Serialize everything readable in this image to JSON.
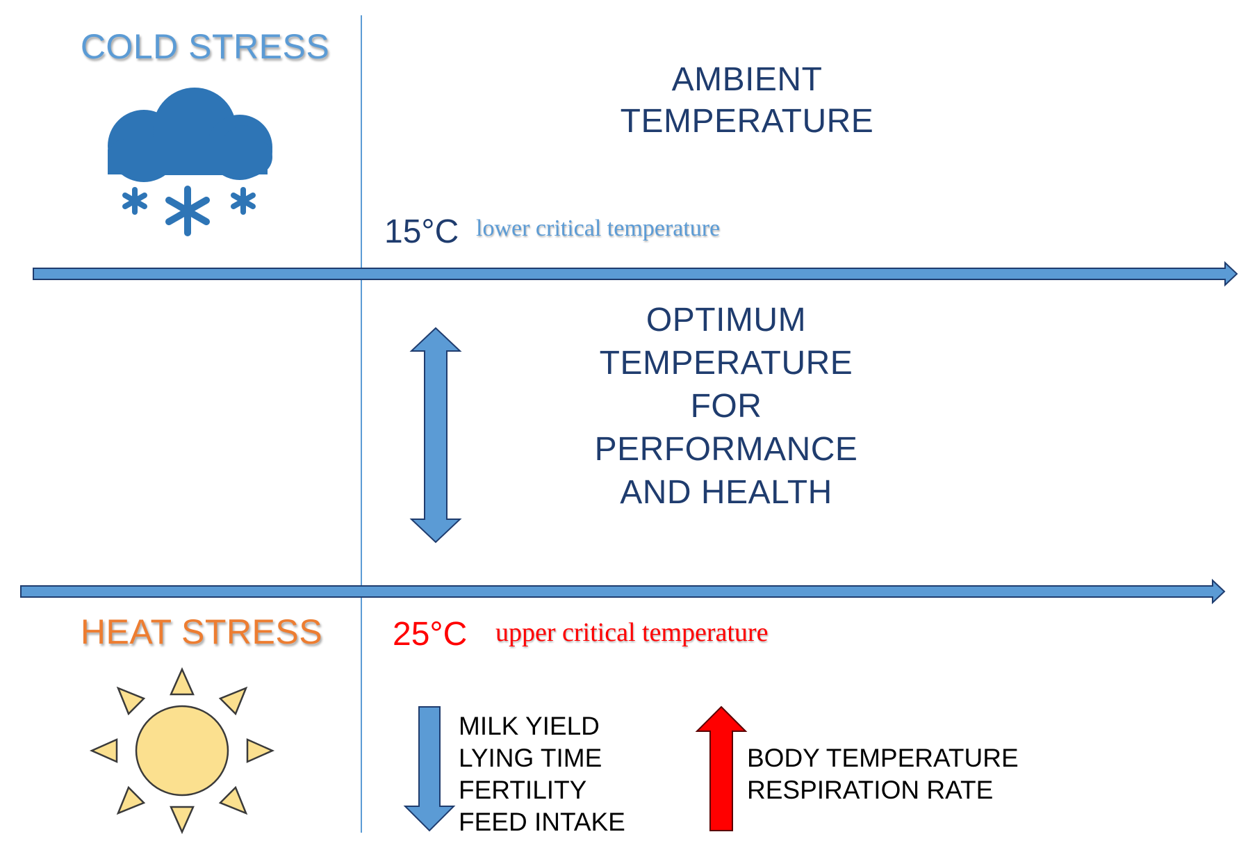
{
  "colors": {
    "cold": "#5b9bd5",
    "heat": "#ed7d31",
    "navy": "#1f3c6e",
    "red": "#ff0000",
    "sun_fill": "#fbe08f"
  },
  "cold": {
    "title": "COLD STRESS",
    "icon": "snow-cloud-icon"
  },
  "heat": {
    "title": "HEAT STRESS",
    "icon": "sun-icon"
  },
  "axis": {
    "title_line1": "AMBIENT",
    "title_line2": "TEMPERATURE"
  },
  "lower": {
    "temp": "15°C",
    "label": "lower critical temperature"
  },
  "upper": {
    "temp": "25°C",
    "label": "upper critical temperature"
  },
  "optimum": {
    "lines": [
      "OPTIMUM",
      "TEMPERATURE",
      "FOR",
      "PERFORMANCE",
      "AND HEALTH"
    ]
  },
  "decrease": {
    "icon": "down-arrow-icon",
    "items": [
      "MILK YIELD",
      "LYING TIME",
      "FERTILITY",
      "FEED INTAKE"
    ]
  },
  "increase": {
    "icon": "up-arrow-icon",
    "items": [
      "BODY TEMPERATURE",
      "RESPIRATION RATE"
    ]
  }
}
